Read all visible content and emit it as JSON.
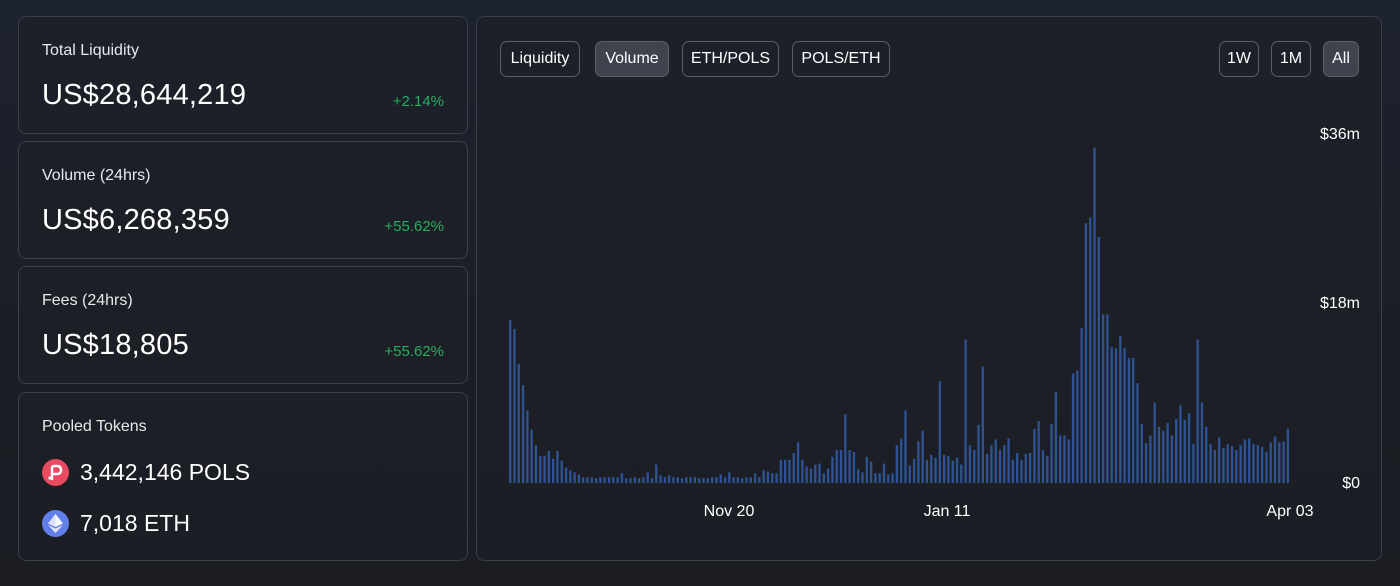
{
  "stats": [
    {
      "label": "Total Liquidity",
      "value": "US$28,644,219",
      "change": "+2.14%"
    },
    {
      "label": "Volume (24hrs)",
      "value": "US$6,268,359",
      "change": "+55.62%"
    },
    {
      "label": "Fees (24hrs)",
      "value": "US$18,805",
      "change": "+55.62%"
    }
  ],
  "pooled": {
    "label": "Pooled Tokens",
    "tokens": [
      {
        "amount": "3,442,146 POLS",
        "icon": "pols-token-icon",
        "color": "#e84a5f"
      },
      {
        "amount": "7,018 ETH",
        "icon": "eth-token-icon",
        "color": "#627eea"
      }
    ]
  },
  "chart_tabs": [
    {
      "label": "Liquidity",
      "active": false
    },
    {
      "label": "Volume",
      "active": true
    },
    {
      "label": "ETH/POLS",
      "active": false
    },
    {
      "label": "POLS/ETH",
      "active": false
    }
  ],
  "range_tabs": [
    {
      "label": "1W",
      "active": false
    },
    {
      "label": "1M",
      "active": false
    },
    {
      "label": "All",
      "active": true
    }
  ],
  "colors": {
    "bar": "#2f5291",
    "positive": "#27ae60",
    "active_tab": "#3f434d"
  },
  "chart_data": {
    "type": "bar",
    "title": "",
    "xlabel": "",
    "ylabel": "",
    "y_tick_labels": [
      "$0",
      "$18m",
      "$36m"
    ],
    "x_tick_labels": [
      "Nov 20",
      "Jan 11",
      "Apr 03"
    ],
    "ylim": [
      0,
      36
    ],
    "unit": "millions USD",
    "values": [
      16.8,
      15.9,
      12.3,
      10.1,
      7.5,
      5.5,
      3.9,
      2.8,
      2.8,
      3.3,
      2.5,
      3.3,
      2.3,
      1.6,
      1.3,
      1.1,
      0.9,
      0.6,
      0.6,
      0.6,
      0.5,
      0.6,
      0.6,
      0.6,
      0.6,
      0.6,
      1.0,
      0.5,
      0.5,
      0.6,
      0.5,
      0.6,
      1.1,
      0.5,
      1.9,
      0.8,
      0.6,
      0.8,
      0.6,
      0.6,
      0.5,
      0.6,
      0.6,
      0.6,
      0.5,
      0.5,
      0.5,
      0.6,
      0.6,
      0.9,
      0.6,
      1.1,
      0.6,
      0.6,
      0.5,
      0.6,
      0.6,
      1.0,
      0.6,
      1.3,
      1.2,
      1.0,
      1.0,
      2.4,
      2.4,
      2.4,
      3.1,
      4.2,
      2.4,
      1.7,
      1.5,
      1.9,
      2.0,
      1.0,
      1.5,
      2.7,
      3.4,
      3.4,
      7.1,
      3.4,
      3.2,
      1.4,
      1.1,
      2.7,
      2.2,
      1.0,
      1.0,
      2.0,
      0.9,
      1.0,
      3.9,
      4.6,
      7.5,
      1.8,
      2.5,
      4.3,
      5.4,
      2.4,
      2.9,
      2.6,
      10.5,
      2.9,
      2.8,
      2.3,
      2.6,
      1.9,
      14.8,
      3.9,
      3.4,
      6.0,
      12.0,
      3.0,
      3.9,
      4.5,
      3.4,
      3.9,
      4.6,
      2.4,
      3.1,
      2.4,
      3.0,
      3.1,
      5.6,
      6.4,
      3.4,
      2.8,
      6.1,
      9.4,
      4.9,
      4.9,
      4.5,
      11.3,
      11.6,
      16.0,
      26.8,
      27.4,
      34.6,
      25.4,
      17.4,
      17.4,
      14.0,
      13.9,
      15.2,
      13.9,
      12.9,
      12.9,
      10.3,
      6.1,
      4.1,
      4.9,
      8.3,
      5.8,
      5.4,
      6.2,
      4.9,
      6.6,
      8.0,
      6.5,
      7.2,
      4.0,
      14.8,
      8.3,
      5.8,
      4.0,
      3.4,
      4.7,
      3.6,
      4.0,
      3.8,
      3.4,
      3.9,
      4.5,
      4.6,
      4.0,
      3.9,
      3.7,
      3.2,
      4.2,
      4.8,
      4.2,
      4.3,
      5.6
    ]
  }
}
